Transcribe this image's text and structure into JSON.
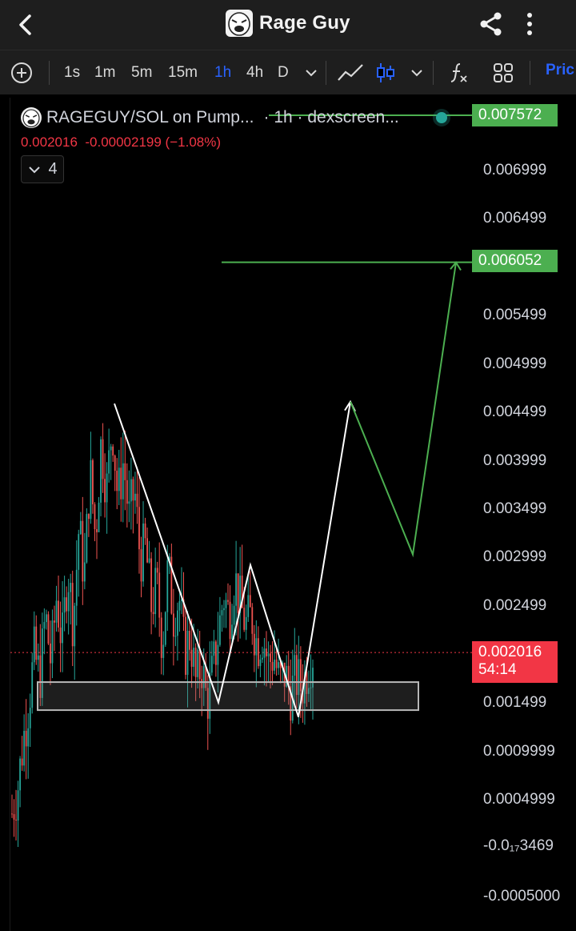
{
  "header": {
    "title": "Rage Guy",
    "back_icon": "chevron-left-icon",
    "share_icon": "share-icon",
    "more_icon": "more-vertical-icon"
  },
  "toolbar": {
    "add_icon": "plus-circle-icon",
    "intervals": [
      "1s",
      "1m",
      "5m",
      "15m",
      "1h",
      "4h",
      "D"
    ],
    "active_interval": "1h",
    "interval_dropdown_icon": "chevron-down-icon",
    "line_tool_icon": "trend-line-icon",
    "candle_tool_icon": "candlestick-icon",
    "chart_type_dropdown_icon": "chevron-down-icon",
    "indicators_icon": "function-icon",
    "layout_icon": "grid-icon",
    "price_label": "Pric"
  },
  "legend": {
    "symbol": "RAGEGUY/SOL on Pump...",
    "interval_source": "· 1h · dexscreen...",
    "last": "0.002016",
    "change": "-0.00002199 (−1.08%)",
    "indicators_count": "4"
  },
  "price_axis": {
    "labels": [
      "0.006999",
      "0.006499",
      "0.005499",
      "0.004999",
      "0.004499",
      "0.003999",
      "0.003499",
      "0.002999",
      "0.002499",
      "0.001499",
      "0.0009999",
      "0.0004999",
      "-0.0₁₇3469",
      "-0.0005000"
    ],
    "target_high": "0.007572",
    "target_mid": "0.006052",
    "current_price": "0.002016",
    "countdown": "54:14"
  },
  "colors": {
    "up": "#26a69a",
    "down": "#ef5350",
    "target": "#4caf50",
    "projection": "#ffffff",
    "active": "#2962ff"
  },
  "chart_data": {
    "type": "candlestick",
    "symbol": "RAGEGUY/SOL",
    "interval": "1h",
    "ylim": [
      -0.00055,
      0.0076
    ],
    "current_price": 0.002016,
    "support_zone": [
      0.00142,
      0.00171
    ],
    "projection_white": [
      [
        0.00459
      ],
      [
        0.0015
      ],
      [
        0.00292
      ],
      [
        0.00135
      ],
      [
        0.00461
      ]
    ],
    "projection_green": [
      0.00461,
      0.00303,
      0.00605
    ],
    "target_levels": [
      0.007572,
      0.006052
    ],
    "close_path": [
      0.00035,
      0.0006,
      0.0011,
      0.0015,
      0.002,
      0.00175,
      0.0024,
      0.0019,
      0.0026,
      0.0021,
      0.0029,
      0.0023,
      0.0033,
      0.0028,
      0.0039,
      0.0032,
      0.0042,
      0.0037,
      0.0044,
      0.0036,
      0.004,
      0.0034,
      0.0037,
      0.003,
      0.0031,
      0.0025,
      0.0027,
      0.0021,
      0.0029,
      0.0024,
      0.0026,
      0.002,
      0.0022,
      0.0017,
      0.0019,
      0.0015,
      0.0018,
      0.0022,
      0.0026,
      0.0024,
      0.0028,
      0.0025,
      0.0023,
      0.0024,
      0.0021,
      0.0022,
      0.0019,
      0.002,
      0.0017,
      0.0018,
      0.0016,
      0.00175,
      0.00165,
      0.00185,
      0.00201
    ]
  }
}
